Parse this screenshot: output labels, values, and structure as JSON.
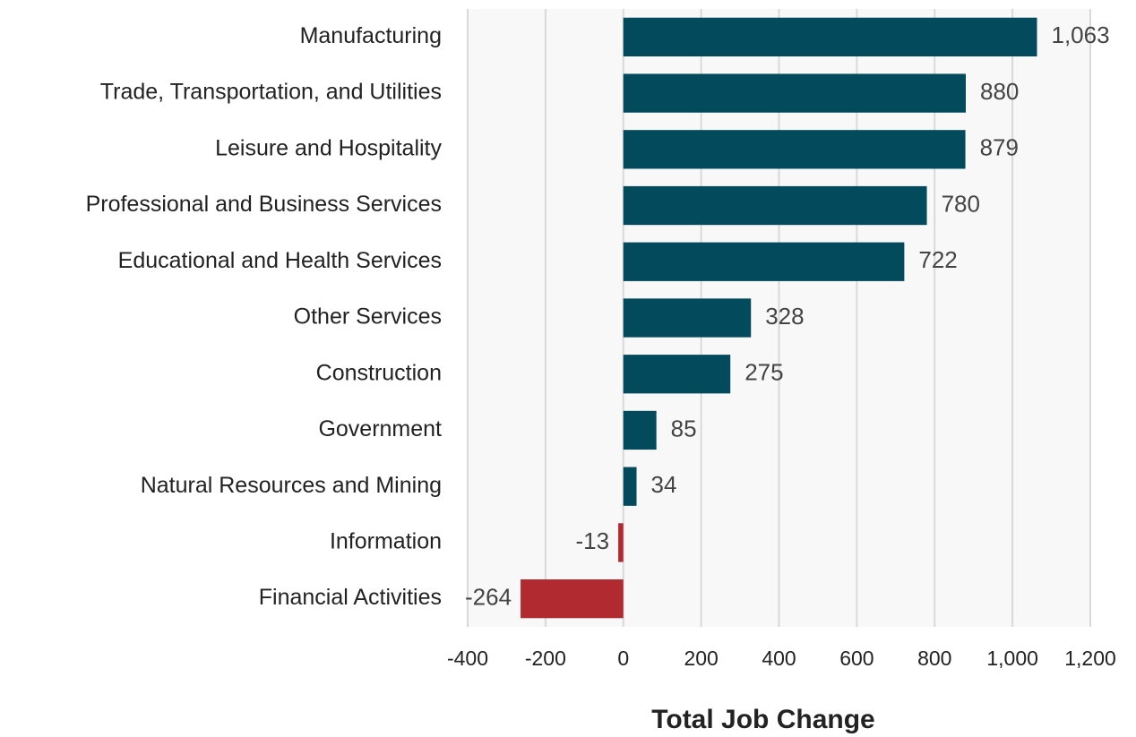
{
  "chart_data": {
    "type": "hbar",
    "x_label": "Total Job Change",
    "categories": [
      "Manufacturing",
      "Trade, Transportation, and Utilities",
      "Leisure and Hospitality",
      "Professional and Business Services",
      "Educational and Health Services",
      "Other Services",
      "Construction",
      "Government",
      "Natural Resources and Mining",
      "Information",
      "Financial Activities"
    ],
    "values": [
      1063,
      880,
      879,
      780,
      722,
      328,
      275,
      85,
      34,
      -13,
      -264
    ],
    "value_labels": [
      "1,063",
      "880",
      "879",
      "780",
      "722",
      "328",
      "275",
      "85",
      "34",
      "-13",
      "-264"
    ],
    "color": "#034b5c",
    "negative_color": "#b02a30",
    "xlim": [
      -400,
      1200
    ],
    "xticks": [
      -400,
      -200,
      0,
      200,
      400,
      600,
      800,
      {
        "value": 1000,
        "label": "1,000"
      },
      {
        "value": 1200,
        "label": "1,200"
      }
    ],
    "grid": true
  }
}
